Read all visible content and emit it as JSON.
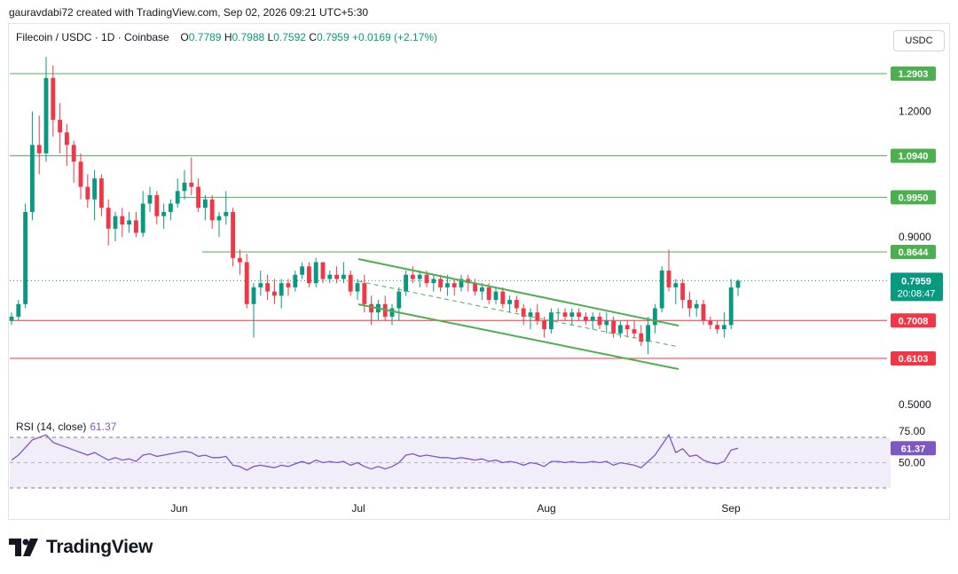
{
  "header": {
    "credit": "gauravdabi72 created with TradingView.com, Sep 02, 2026 09:21 UTC+5:30"
  },
  "symbol": {
    "name": "Filecoin / USDC · 1D · Coinbase",
    "o_label": "O",
    "o": "0.7789",
    "h_label": "H",
    "h": "0.7988",
    "l_label": "L",
    "l": "0.7592",
    "c_label": "C",
    "c": "0.7959",
    "change": "+0.0169 (+2.17%)"
  },
  "currency_button": "USDC",
  "rsi": {
    "label": "RSI (14, close)",
    "value": "61.37"
  },
  "logo": {
    "text": "TradingView",
    "icon": "tradingview-logo-icon"
  },
  "colors": {
    "up": "#089981",
    "down": "#f23645",
    "resistance": "#4caf50",
    "support": "#f23645",
    "rsi": "#7e57c2",
    "channel": "#4caf50"
  },
  "chart_data": {
    "type": "candlestick",
    "price_axis": {
      "ticks": [
        "1.2000",
        "0.9000",
        "0.5000"
      ],
      "ylim": [
        0.46,
        1.32
      ]
    },
    "time_axis": {
      "ticks": [
        "Jun",
        "Jul",
        "Aug",
        "Sep"
      ]
    },
    "horizontal_levels": [
      {
        "value": 1.2903,
        "label": "1.2903",
        "kind": "resistance"
      },
      {
        "value": 1.094,
        "label": "1.0940",
        "kind": "resistance"
      },
      {
        "value": 0.995,
        "label": "0.9950",
        "kind": "resistance"
      },
      {
        "value": 0.8644,
        "label": "0.8644",
        "kind": "resistance"
      },
      {
        "value": 0.7008,
        "label": "0.7008",
        "kind": "support"
      },
      {
        "value": 0.6103,
        "label": "0.6103",
        "kind": "support"
      }
    ],
    "last_price": {
      "value": 0.7959,
      "label": "0.7959",
      "countdown": "20:08:47"
    },
    "channel": {
      "upper": {
        "start": [
          "Jul",
          0.851
        ],
        "end": [
          "Aug-end",
          0.684
        ]
      },
      "lower": {
        "start": [
          "Jul",
          0.739
        ],
        "end": [
          "Aug-end",
          0.574
        ]
      }
    },
    "candles": [
      [
        0.7,
        0.72,
        0.69,
        0.71
      ],
      [
        0.71,
        0.75,
        0.7,
        0.74
      ],
      [
        0.74,
        0.98,
        0.73,
        0.96
      ],
      [
        0.96,
        1.2,
        0.94,
        1.12
      ],
      [
        1.12,
        1.19,
        1.05,
        1.1
      ],
      [
        1.1,
        1.33,
        1.08,
        1.28
      ],
      [
        1.28,
        1.31,
        1.14,
        1.18
      ],
      [
        1.18,
        1.22,
        1.1,
        1.15
      ],
      [
        1.15,
        1.17,
        1.07,
        1.12
      ],
      [
        1.12,
        1.13,
        1.03,
        1.08
      ],
      [
        1.08,
        1.1,
        0.99,
        1.02
      ],
      [
        1.02,
        1.05,
        0.97,
        0.99
      ],
      [
        0.99,
        1.06,
        0.94,
        1.04
      ],
      [
        1.04,
        1.05,
        0.95,
        0.97
      ],
      [
        0.97,
        0.99,
        0.88,
        0.92
      ],
      [
        0.92,
        0.96,
        0.89,
        0.95
      ],
      [
        0.95,
        0.97,
        0.9,
        0.93
      ],
      [
        0.93,
        0.96,
        0.91,
        0.94
      ],
      [
        0.94,
        0.96,
        0.9,
        0.91
      ],
      [
        0.91,
        1.01,
        0.9,
        0.98
      ],
      [
        0.98,
        1.02,
        0.96,
        1.0
      ],
      [
        1.0,
        1.01,
        0.93,
        0.95
      ],
      [
        0.95,
        0.98,
        0.92,
        0.96
      ],
      [
        0.96,
        0.99,
        0.94,
        0.98
      ],
      [
        0.98,
        1.04,
        0.97,
        1.01
      ],
      [
        1.01,
        1.06,
        0.99,
        1.03
      ],
      [
        1.03,
        1.09,
        1.0,
        1.02
      ],
      [
        1.02,
        1.04,
        0.96,
        0.97
      ],
      [
        0.97,
        1.0,
        0.94,
        0.99
      ],
      [
        0.99,
        1.0,
        0.92,
        0.94
      ],
      [
        0.94,
        0.96,
        0.9,
        0.95
      ],
      [
        0.95,
        1.01,
        0.93,
        0.96
      ],
      [
        0.96,
        0.97,
        0.83,
        0.85
      ],
      [
        0.85,
        0.87,
        0.81,
        0.84
      ],
      [
        0.84,
        0.86,
        0.73,
        0.74
      ],
      [
        0.74,
        0.79,
        0.66,
        0.78
      ],
      [
        0.78,
        0.82,
        0.76,
        0.79
      ],
      [
        0.79,
        0.81,
        0.75,
        0.77
      ],
      [
        0.77,
        0.8,
        0.74,
        0.76
      ],
      [
        0.76,
        0.8,
        0.73,
        0.79
      ],
      [
        0.79,
        0.8,
        0.76,
        0.78
      ],
      [
        0.78,
        0.82,
        0.77,
        0.81
      ],
      [
        0.81,
        0.84,
        0.8,
        0.83
      ],
      [
        0.83,
        0.84,
        0.78,
        0.79
      ],
      [
        0.79,
        0.85,
        0.78,
        0.84
      ],
      [
        0.84,
        0.84,
        0.79,
        0.8
      ],
      [
        0.8,
        0.82,
        0.79,
        0.81
      ],
      [
        0.81,
        0.83,
        0.79,
        0.8
      ],
      [
        0.8,
        0.84,
        0.79,
        0.81
      ],
      [
        0.81,
        0.82,
        0.76,
        0.77
      ],
      [
        0.77,
        0.8,
        0.75,
        0.79
      ],
      [
        0.79,
        0.81,
        0.72,
        0.74
      ],
      [
        0.74,
        0.76,
        0.69,
        0.72
      ],
      [
        0.72,
        0.75,
        0.7,
        0.74
      ],
      [
        0.74,
        0.76,
        0.7,
        0.71
      ],
      [
        0.71,
        0.74,
        0.69,
        0.73
      ],
      [
        0.73,
        0.78,
        0.7,
        0.77
      ],
      [
        0.77,
        0.82,
        0.76,
        0.81
      ],
      [
        0.81,
        0.83,
        0.79,
        0.8
      ],
      [
        0.8,
        0.82,
        0.78,
        0.81
      ],
      [
        0.81,
        0.82,
        0.78,
        0.79
      ],
      [
        0.79,
        0.81,
        0.77,
        0.8
      ],
      [
        0.8,
        0.81,
        0.77,
        0.78
      ],
      [
        0.78,
        0.81,
        0.76,
        0.79
      ],
      [
        0.79,
        0.8,
        0.76,
        0.78
      ],
      [
        0.78,
        0.81,
        0.77,
        0.8
      ],
      [
        0.8,
        0.81,
        0.77,
        0.79
      ],
      [
        0.79,
        0.8,
        0.76,
        0.77
      ],
      [
        0.77,
        0.79,
        0.75,
        0.78
      ],
      [
        0.78,
        0.79,
        0.74,
        0.75
      ],
      [
        0.75,
        0.78,
        0.74,
        0.77
      ],
      [
        0.77,
        0.78,
        0.73,
        0.74
      ],
      [
        0.74,
        0.76,
        0.72,
        0.75
      ],
      [
        0.75,
        0.76,
        0.72,
        0.73
      ],
      [
        0.73,
        0.74,
        0.69,
        0.71
      ],
      [
        0.71,
        0.73,
        0.68,
        0.72
      ],
      [
        0.72,
        0.74,
        0.69,
        0.7
      ],
      [
        0.7,
        0.71,
        0.66,
        0.68
      ],
      [
        0.68,
        0.73,
        0.67,
        0.72
      ],
      [
        0.72,
        0.73,
        0.7,
        0.72
      ],
      [
        0.72,
        0.73,
        0.7,
        0.71
      ],
      [
        0.71,
        0.73,
        0.69,
        0.72
      ],
      [
        0.72,
        0.73,
        0.7,
        0.71
      ],
      [
        0.71,
        0.72,
        0.69,
        0.7
      ],
      [
        0.7,
        0.72,
        0.68,
        0.71
      ],
      [
        0.71,
        0.72,
        0.68,
        0.69
      ],
      [
        0.69,
        0.72,
        0.67,
        0.7
      ],
      [
        0.7,
        0.71,
        0.66,
        0.67
      ],
      [
        0.67,
        0.7,
        0.66,
        0.69
      ],
      [
        0.69,
        0.7,
        0.66,
        0.68
      ],
      [
        0.68,
        0.7,
        0.66,
        0.67
      ],
      [
        0.67,
        0.69,
        0.64,
        0.65
      ],
      [
        0.65,
        0.71,
        0.62,
        0.69
      ],
      [
        0.69,
        0.74,
        0.67,
        0.73
      ],
      [
        0.73,
        0.83,
        0.72,
        0.82
      ],
      [
        0.82,
        0.87,
        0.77,
        0.78
      ],
      [
        0.78,
        0.8,
        0.74,
        0.79
      ],
      [
        0.79,
        0.8,
        0.73,
        0.75
      ],
      [
        0.75,
        0.77,
        0.71,
        0.73
      ],
      [
        0.73,
        0.75,
        0.71,
        0.74
      ],
      [
        0.74,
        0.75,
        0.69,
        0.7
      ],
      [
        0.7,
        0.71,
        0.68,
        0.69
      ],
      [
        0.69,
        0.7,
        0.67,
        0.68
      ],
      [
        0.68,
        0.72,
        0.66,
        0.69
      ],
      [
        0.69,
        0.8,
        0.68,
        0.78
      ],
      [
        0.7789,
        0.7988,
        0.7592,
        0.7959
      ]
    ],
    "rsi_series": [
      52,
      56,
      62,
      68,
      70,
      72,
      66,
      64,
      62,
      60,
      58,
      56,
      58,
      55,
      52,
      54,
      52,
      53,
      51,
      56,
      57,
      55,
      56,
      57,
      58,
      59,
      58,
      55,
      56,
      54,
      54,
      55,
      48,
      47,
      44,
      47,
      48,
      47,
      46,
      48,
      47,
      49,
      51,
      49,
      52,
      50,
      51,
      50,
      51,
      48,
      50,
      47,
      45,
      47,
      45,
      47,
      50,
      56,
      57,
      55,
      56,
      55,
      54,
      54,
      53,
      54,
      53,
      52,
      53,
      51,
      52,
      50,
      51,
      50,
      48,
      50,
      49,
      47,
      51,
      51,
      50,
      51,
      50,
      50,
      51,
      50,
      51,
      48,
      50,
      49,
      48,
      46,
      51,
      56,
      64,
      72,
      58,
      61,
      55,
      56,
      52,
      50,
      49,
      51,
      60,
      61.37
    ],
    "rsi_axis": {
      "ticks": [
        "75.00",
        "50.00"
      ],
      "ylim": [
        30,
        80
      ],
      "band": [
        30,
        70
      ]
    }
  }
}
